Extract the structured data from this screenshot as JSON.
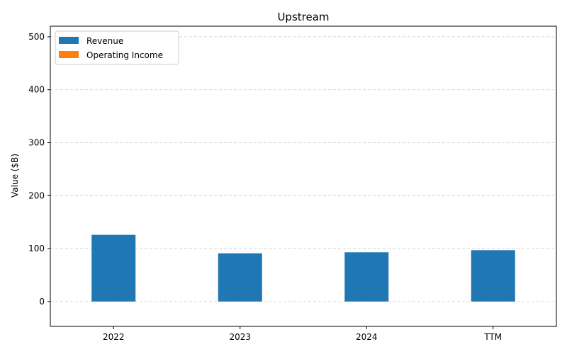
{
  "chart_data": {
    "type": "bar",
    "title": "Upstream",
    "xlabel": "",
    "ylabel": "Value ($B)",
    "categories": [
      "2022",
      "2023",
      "2024",
      "TTM"
    ],
    "series": [
      {
        "name": "Revenue",
        "values": [
          126,
          91,
          93,
          97
        ],
        "color": "#1f77b4"
      },
      {
        "name": "Operating Income",
        "values": [
          0,
          0,
          0,
          0
        ],
        "color": "#ff7f0e"
      }
    ],
    "ylim": [
      -47,
      520
    ],
    "yticks": [
      0,
      100,
      200,
      300,
      400,
      500
    ],
    "grid": true,
    "legend": "top-left"
  }
}
